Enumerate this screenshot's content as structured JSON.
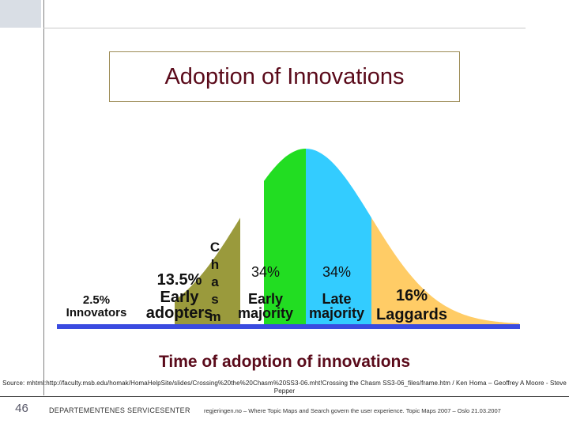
{
  "title": "Adoption of Innovations",
  "chart_data": {
    "type": "area",
    "title": "Adoption of Innovations",
    "xlabel": "Time of adoption of innovations",
    "ylabel": "",
    "segments": [
      {
        "label_lines": [
          "2.5%",
          "Innovators"
        ],
        "value": 2.5,
        "color": "#ffffff"
      },
      {
        "label_lines": [
          "13.5%",
          "Early",
          "adopters"
        ],
        "value": 13.5,
        "color": "#9a9a3c"
      },
      {
        "label_lines": [
          "C",
          "h",
          "a",
          "s",
          "m"
        ],
        "value": 0,
        "color": "#ffffff"
      },
      {
        "label_lines": [
          "34%",
          "Early",
          "majority"
        ],
        "value": 34,
        "color": "#22dd22"
      },
      {
        "label_lines": [
          "34%",
          "Late",
          "majority"
        ],
        "value": 34,
        "color": "#33ccff"
      },
      {
        "label_lines": [
          "16%",
          "Laggards"
        ],
        "value": 16,
        "color": "#ffcc66"
      }
    ],
    "curve": "normal",
    "axis_color": "#3a4be0"
  },
  "source": "Source: mhtml:http://faculty.msb.edu/homak/HomaHelpSite/slides/Crossing%20the%20Chasm%20SS3-06.mht!Crossing the Chasm SS3-06_files/frame.htm / Ken Homa – Geoffrey A Moore - Steve Pepper",
  "footer": {
    "page_number": "46",
    "organization": "DEPARTEMENTENES SERVICESENTER",
    "text": "regjeringen.no – Where Topic Maps and Search govern the user experience. Topic Maps 2007 – Oslo 21.03.2007"
  }
}
